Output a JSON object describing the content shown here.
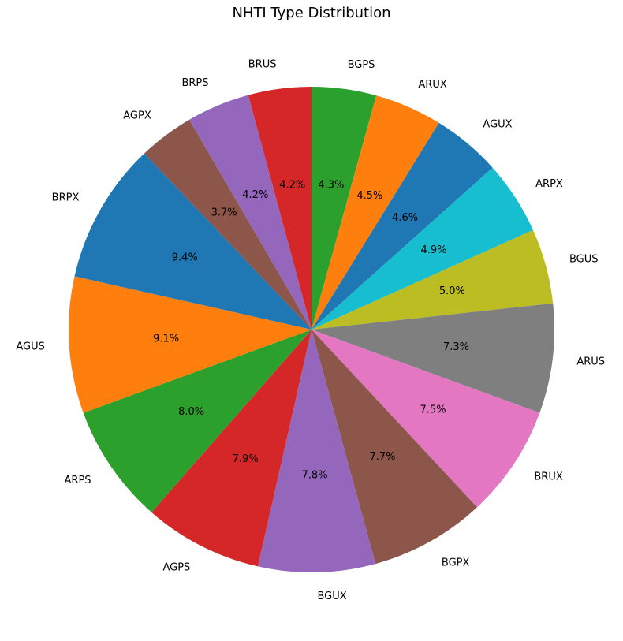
{
  "chart_data": {
    "type": "pie",
    "title": "NHTI Type Distribution",
    "start_angle_deg": 90,
    "direction": "clockwise",
    "slices": [
      {
        "label": "BGPS",
        "value": 4.3,
        "pct_text": "4.3%",
        "color": "#2ca02c"
      },
      {
        "label": "ARUX",
        "value": 4.5,
        "pct_text": "4.5%",
        "color": "#ff7f0e"
      },
      {
        "label": "AGUX",
        "value": 4.6,
        "pct_text": "4.6%",
        "color": "#1f77b4"
      },
      {
        "label": "ARPX",
        "value": 4.9,
        "pct_text": "4.9%",
        "color": "#17becf"
      },
      {
        "label": "BGUS",
        "value": 5.0,
        "pct_text": "5.0%",
        "color": "#bcbd22"
      },
      {
        "label": "ARUS",
        "value": 7.3,
        "pct_text": "7.3%",
        "color": "#7f7f7f"
      },
      {
        "label": "BRUX",
        "value": 7.5,
        "pct_text": "7.5%",
        "color": "#e377c2"
      },
      {
        "label": "BGPX",
        "value": 7.7,
        "pct_text": "7.7%",
        "color": "#8c564b"
      },
      {
        "label": "BGUX",
        "value": 7.8,
        "pct_text": "7.8%",
        "color": "#9467bd"
      },
      {
        "label": "AGPS",
        "value": 7.9,
        "pct_text": "7.9%",
        "color": "#d62728"
      },
      {
        "label": "ARPS",
        "value": 8.0,
        "pct_text": "8.0%",
        "color": "#2ca02c"
      },
      {
        "label": "AGUS",
        "value": 9.1,
        "pct_text": "9.1%",
        "color": "#ff7f0e"
      },
      {
        "label": "BRPX",
        "value": 9.4,
        "pct_text": "9.4%",
        "color": "#1f77b4"
      },
      {
        "label": "AGPX",
        "value": 3.7,
        "pct_text": "3.7%",
        "color": "#8c564b"
      },
      {
        "label": "BRPS",
        "value": 4.2,
        "pct_text": "4.2%",
        "color": "#9467bd"
      },
      {
        "label": "BRUS",
        "value": 4.2,
        "pct_text": "4.2%",
        "color": "#d62728"
      }
    ]
  }
}
